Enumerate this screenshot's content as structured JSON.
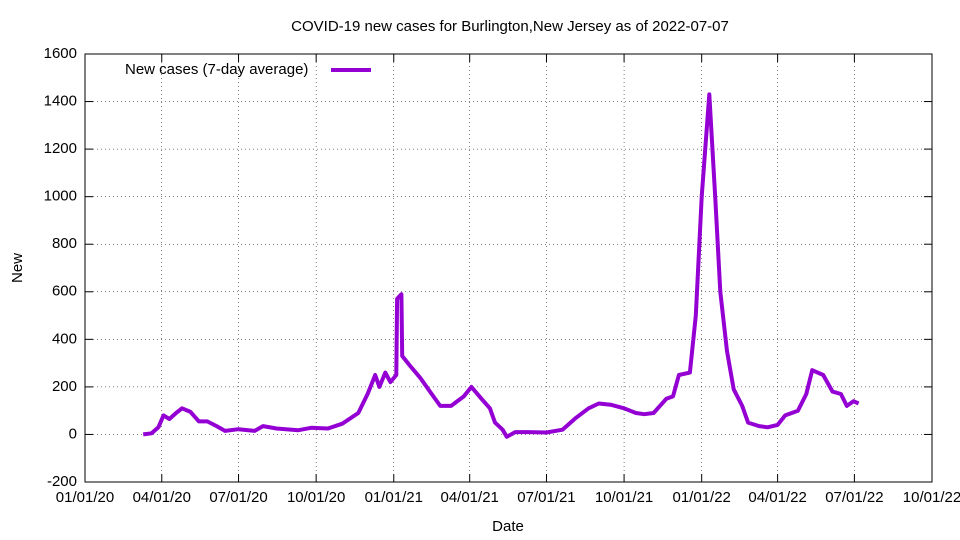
{
  "chart_data": {
    "type": "line",
    "title": "COVID-19 new cases for Burlington,New Jersey as of 2022-07-07",
    "x_label": "Date",
    "y_label": "New",
    "legend": "top-left",
    "grid": true,
    "xlim": [
      "2020-01-01",
      "2022-10-01"
    ],
    "xticks": [
      {
        "value": "2020-01-01",
        "label": "01/01/20"
      },
      {
        "value": "2020-04-01",
        "label": "04/01/20"
      },
      {
        "value": "2020-07-01",
        "label": "07/01/20"
      },
      {
        "value": "2020-10-01",
        "label": "10/01/20"
      },
      {
        "value": "2021-01-01",
        "label": "01/01/21"
      },
      {
        "value": "2021-04-01",
        "label": "04/01/21"
      },
      {
        "value": "2021-07-01",
        "label": "07/01/21"
      },
      {
        "value": "2021-10-01",
        "label": "10/01/21"
      },
      {
        "value": "2022-01-01",
        "label": "01/01/22"
      },
      {
        "value": "2022-04-01",
        "label": "04/01/22"
      },
      {
        "value": "2022-07-01",
        "label": "07/01/22"
      },
      {
        "value": "2022-10-01",
        "label": "10/01/22"
      }
    ],
    "ylim": [
      -200,
      1600
    ],
    "yticks": [
      -200,
      0,
      200,
      400,
      600,
      800,
      1000,
      1200,
      1400,
      1600
    ],
    "x": [
      "2020-03-10",
      "2020-03-20",
      "2020-03-28",
      "2020-04-03",
      "2020-04-10",
      "2020-04-18",
      "2020-04-25",
      "2020-05-05",
      "2020-05-15",
      "2020-05-25",
      "2020-06-05",
      "2020-06-15",
      "2020-07-01",
      "2020-07-20",
      "2020-07-30",
      "2020-08-15",
      "2020-09-10",
      "2020-09-25",
      "2020-10-15",
      "2020-11-01",
      "2020-11-20",
      "2020-12-01",
      "2020-12-10",
      "2020-12-15",
      "2020-12-22",
      "2020-12-28",
      "2021-01-04",
      "2021-01-05",
      "2021-01-10",
      "2021-01-11",
      "2021-01-20",
      "2021-02-01",
      "2021-02-15",
      "2021-02-25",
      "2021-03-10",
      "2021-03-25",
      "2021-04-03",
      "2021-04-15",
      "2021-04-25",
      "2021-05-01",
      "2021-05-10",
      "2021-05-15",
      "2021-05-25",
      "2021-06-10",
      "2021-07-01",
      "2021-07-20",
      "2021-08-05",
      "2021-08-20",
      "2021-09-01",
      "2021-09-15",
      "2021-10-01",
      "2021-10-15",
      "2021-10-25",
      "2021-11-05",
      "2021-11-20",
      "2021-11-28",
      "2021-12-05",
      "2021-12-18",
      "2021-12-25",
      "2022-01-01",
      "2022-01-10",
      "2022-01-17",
      "2022-01-23",
      "2022-01-31",
      "2022-02-08",
      "2022-02-18",
      "2022-02-25",
      "2022-03-10",
      "2022-03-20",
      "2022-04-01",
      "2022-04-10",
      "2022-04-25",
      "2022-05-05",
      "2022-05-12",
      "2022-05-25",
      "2022-06-05",
      "2022-06-15",
      "2022-06-22",
      "2022-06-30",
      "2022-07-06"
    ],
    "series": [
      {
        "name": "New cases (7-day average)",
        "color": "#9400d3",
        "values": [
          0,
          5,
          30,
          80,
          65,
          90,
          110,
          95,
          55,
          55,
          35,
          15,
          22,
          15,
          35,
          25,
          18,
          28,
          25,
          45,
          90,
          170,
          250,
          200,
          260,
          220,
          250,
          570,
          590,
          330,
          290,
          240,
          170,
          120,
          120,
          160,
          200,
          150,
          110,
          50,
          20,
          -10,
          10,
          10,
          8,
          20,
          70,
          110,
          130,
          125,
          110,
          90,
          85,
          90,
          150,
          160,
          250,
          260,
          500,
          1000,
          1430,
          1000,
          600,
          350,
          190,
          120,
          50,
          35,
          30,
          40,
          80,
          100,
          170,
          270,
          250,
          180,
          170,
          120,
          140,
          130
        ]
      }
    ]
  }
}
